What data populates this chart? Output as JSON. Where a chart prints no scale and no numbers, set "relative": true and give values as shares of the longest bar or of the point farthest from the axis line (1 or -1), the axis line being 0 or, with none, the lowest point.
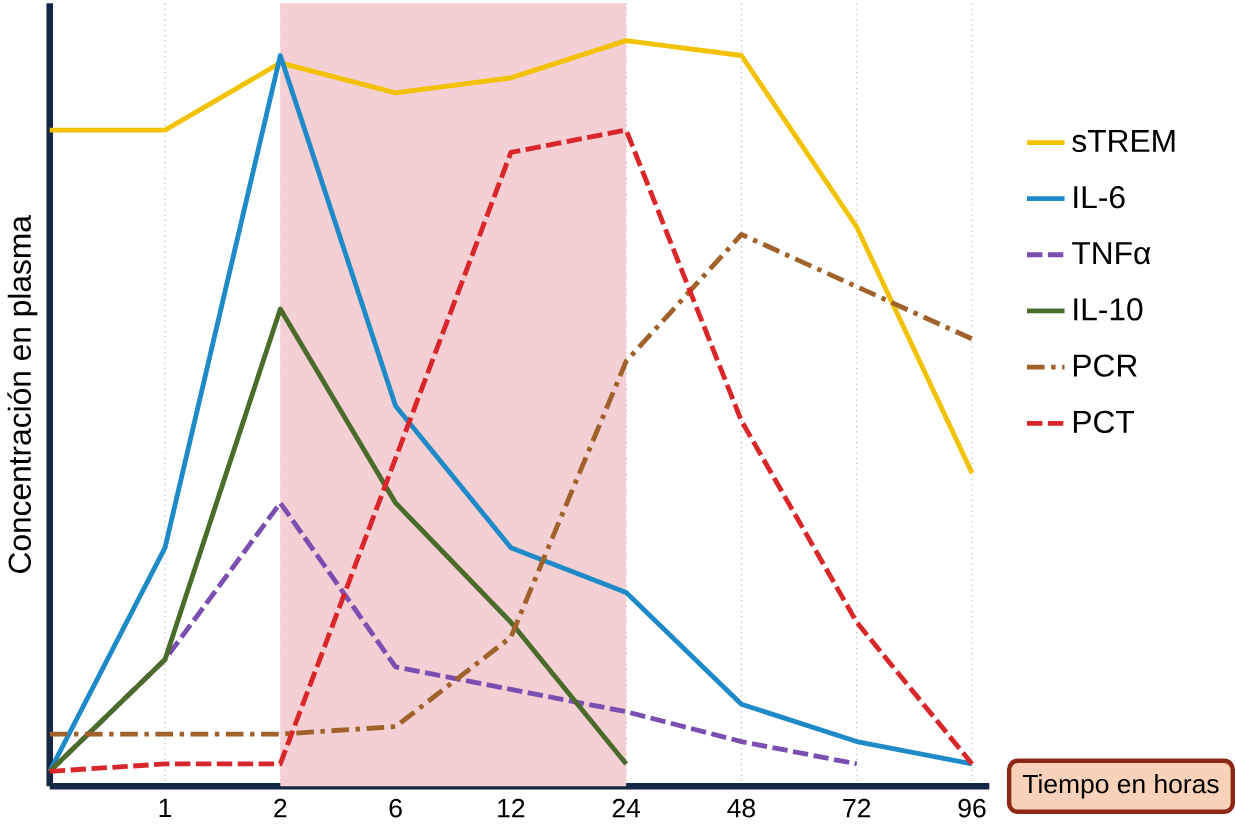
{
  "chart_data": {
    "type": "line",
    "relative": true,
    "xlabel": "Tiempo en horas",
    "ylabel": "Concentración en plasma",
    "categories": [
      null,
      "1",
      "2",
      "6",
      "12",
      "24",
      "48",
      "72",
      "96"
    ],
    "series": [
      {
        "name": "sTREM",
        "color": "#f2c200",
        "line_style": "solid",
        "values": [
          0.88,
          0.88,
          0.97,
          0.93,
          0.95,
          1.0,
          0.98,
          0.75,
          0.42
        ]
      },
      {
        "name": "IL-6",
        "color": "#1f8ac8",
        "line_style": "solid",
        "values": [
          0.02,
          0.32,
          0.98,
          0.51,
          0.32,
          0.26,
          0.11,
          0.06,
          0.03
        ]
      },
      {
        "name": "TNFα",
        "color": "#7a4fb0",
        "line_style": "dashed",
        "values": [
          0.02,
          0.17,
          0.38,
          0.16,
          0.13,
          0.1,
          0.06,
          0.03,
          null
        ]
      },
      {
        "name": "IL-10",
        "color": "#4a6b2a",
        "line_style": "solid",
        "values": [
          0.02,
          0.17,
          0.64,
          0.38,
          0.22,
          0.03,
          null,
          null,
          null
        ]
      },
      {
        "name": "PCR",
        "color": "#a0622a",
        "line_style": "dashdot",
        "values": [
          0.07,
          0.07,
          0.07,
          0.08,
          0.2,
          0.57,
          0.74,
          0.67,
          0.6
        ]
      },
      {
        "name": "PCT",
        "color": "#d9262a",
        "line_style": "dashed",
        "values": [
          0.02,
          0.03,
          0.03,
          0.44,
          0.85,
          0.88,
          0.49,
          0.22,
          0.03
        ]
      }
    ],
    "bands": [
      {
        "axis": "x",
        "from": "2",
        "to": "24",
        "color": "#f4cfd3"
      }
    ],
    "grid": "x",
    "legend": "right",
    "marker": "none"
  }
}
